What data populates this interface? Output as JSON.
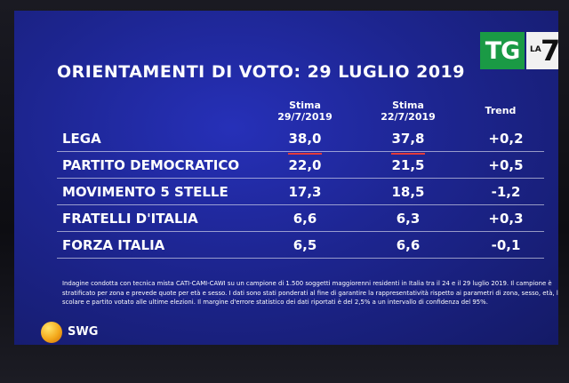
{
  "title": "ORIENTAMENTI DI VOTO: 29 LUGLIO 2019",
  "logo": {
    "tg": "TG",
    "la": "LA",
    "seven": "7",
    "accent": "#1a9a45"
  },
  "columns": [
    {
      "line1": "Stima",
      "line2": "29/7/2019"
    },
    {
      "line1": "Stima",
      "line2": "22/7/2019"
    },
    {
      "line1": "Trend",
      "line2": ""
    }
  ],
  "rows": [
    {
      "party": "LEGA",
      "current": "38,0",
      "previous": "37,8",
      "trend": "+0,2"
    },
    {
      "party": "PARTITO DEMOCRATICO",
      "current": "22,0",
      "previous": "21,5",
      "trend": "+0,5"
    },
    {
      "party": "MOVIMENTO 5 STELLE",
      "current": "17,3",
      "previous": "18,5",
      "trend": "-1,2"
    },
    {
      "party": "FRATELLI D'ITALIA",
      "current": "6,6",
      "previous": "6,3",
      "trend": "+0,3"
    },
    {
      "party": "FORZA ITALIA",
      "current": "6,5",
      "previous": "6,6",
      "trend": "-0,1"
    }
  ],
  "footnote": [
    "Indagine condotta con tecnica mista CATI-CAMI-CAWI su un campione di 1.500 soggetti maggiorenni residenti in Italia tra il 24 e il 29 luglio 2019. Il campione è",
    "stratificato per zona e prevede quote per età e sesso. I dati sono stati ponderati al fine di garantire la rappresentatività rispetto ai parametri di zona, sesso, età, livello",
    "scolare e partito votato alle ultime elezioni. Il margine d'errore statistico dei dati riportati è del 2,5% a un intervallo di confidenza del 95%."
  ],
  "brand": {
    "name": "SWG"
  }
}
